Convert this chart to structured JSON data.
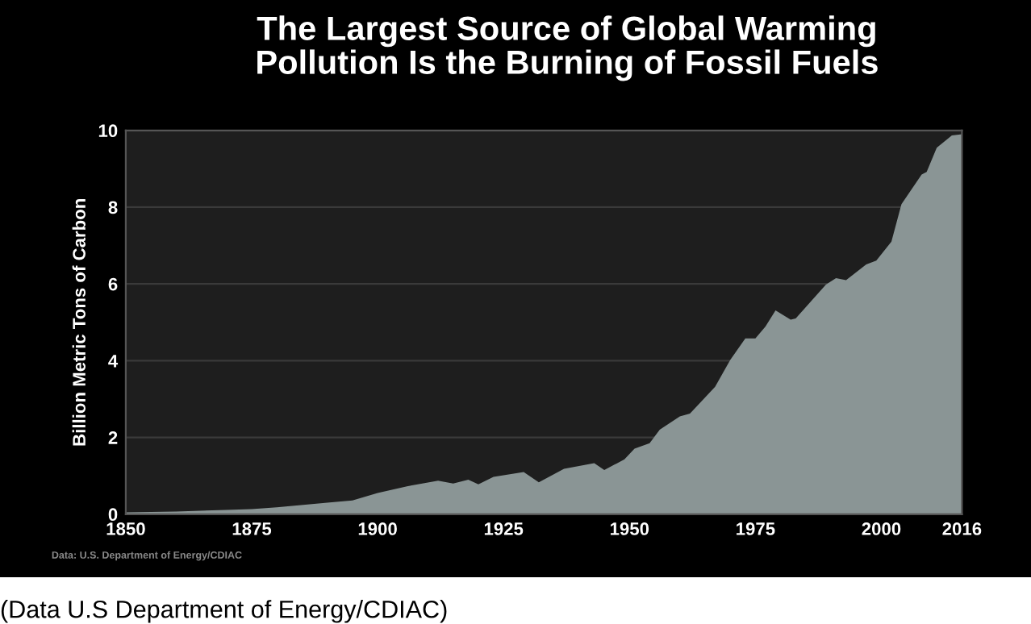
{
  "chart_data": {
    "type": "area",
    "title": "The Largest Source of Global Warming\nPollution Is the Burning of Fossil Fuels",
    "ylabel": "Billion Metric Tons of Carbon",
    "annotations": [
      "Data: U.S. Department of Energy/CDIAC",
      "(Data U.S Department of Energy/CDIAC)"
    ],
    "x": [
      1850,
      1860,
      1870,
      1875,
      1880,
      1890,
      1895,
      1900,
      1906,
      1912,
      1915,
      1918,
      1920,
      1923,
      1929,
      1932,
      1937,
      1943,
      1945,
      1949,
      1951,
      1954,
      1956,
      1960,
      1962,
      1967,
      1970,
      1973,
      1975,
      1977,
      1979,
      1982,
      1983,
      1989,
      1991,
      1993,
      1997,
      1999,
      2002,
      2004,
      2008,
      2009,
      2011,
      2014,
      2016
    ],
    "series": [
      {
        "color": "#8a9595",
        "values": [
          0.05,
          0.07,
          0.11,
          0.13,
          0.18,
          0.3,
          0.36,
          0.55,
          0.73,
          0.87,
          0.8,
          0.9,
          0.78,
          0.97,
          1.1,
          0.83,
          1.18,
          1.33,
          1.15,
          1.43,
          1.71,
          1.85,
          2.2,
          2.55,
          2.62,
          3.32,
          4.02,
          4.58,
          4.58,
          4.89,
          5.31,
          5.07,
          5.1,
          5.98,
          6.15,
          6.1,
          6.51,
          6.61,
          7.1,
          8.08,
          8.85,
          8.92,
          9.55,
          9.87,
          9.9
        ]
      }
    ],
    "xlim": [
      1850,
      2016
    ],
    "xticks": [
      1850,
      1875,
      1900,
      1925,
      1950,
      1975,
      2000,
      2016
    ],
    "ylim": [
      0,
      10
    ],
    "yticks": [
      0,
      2,
      4,
      6,
      8,
      10
    ],
    "grid": "y"
  }
}
